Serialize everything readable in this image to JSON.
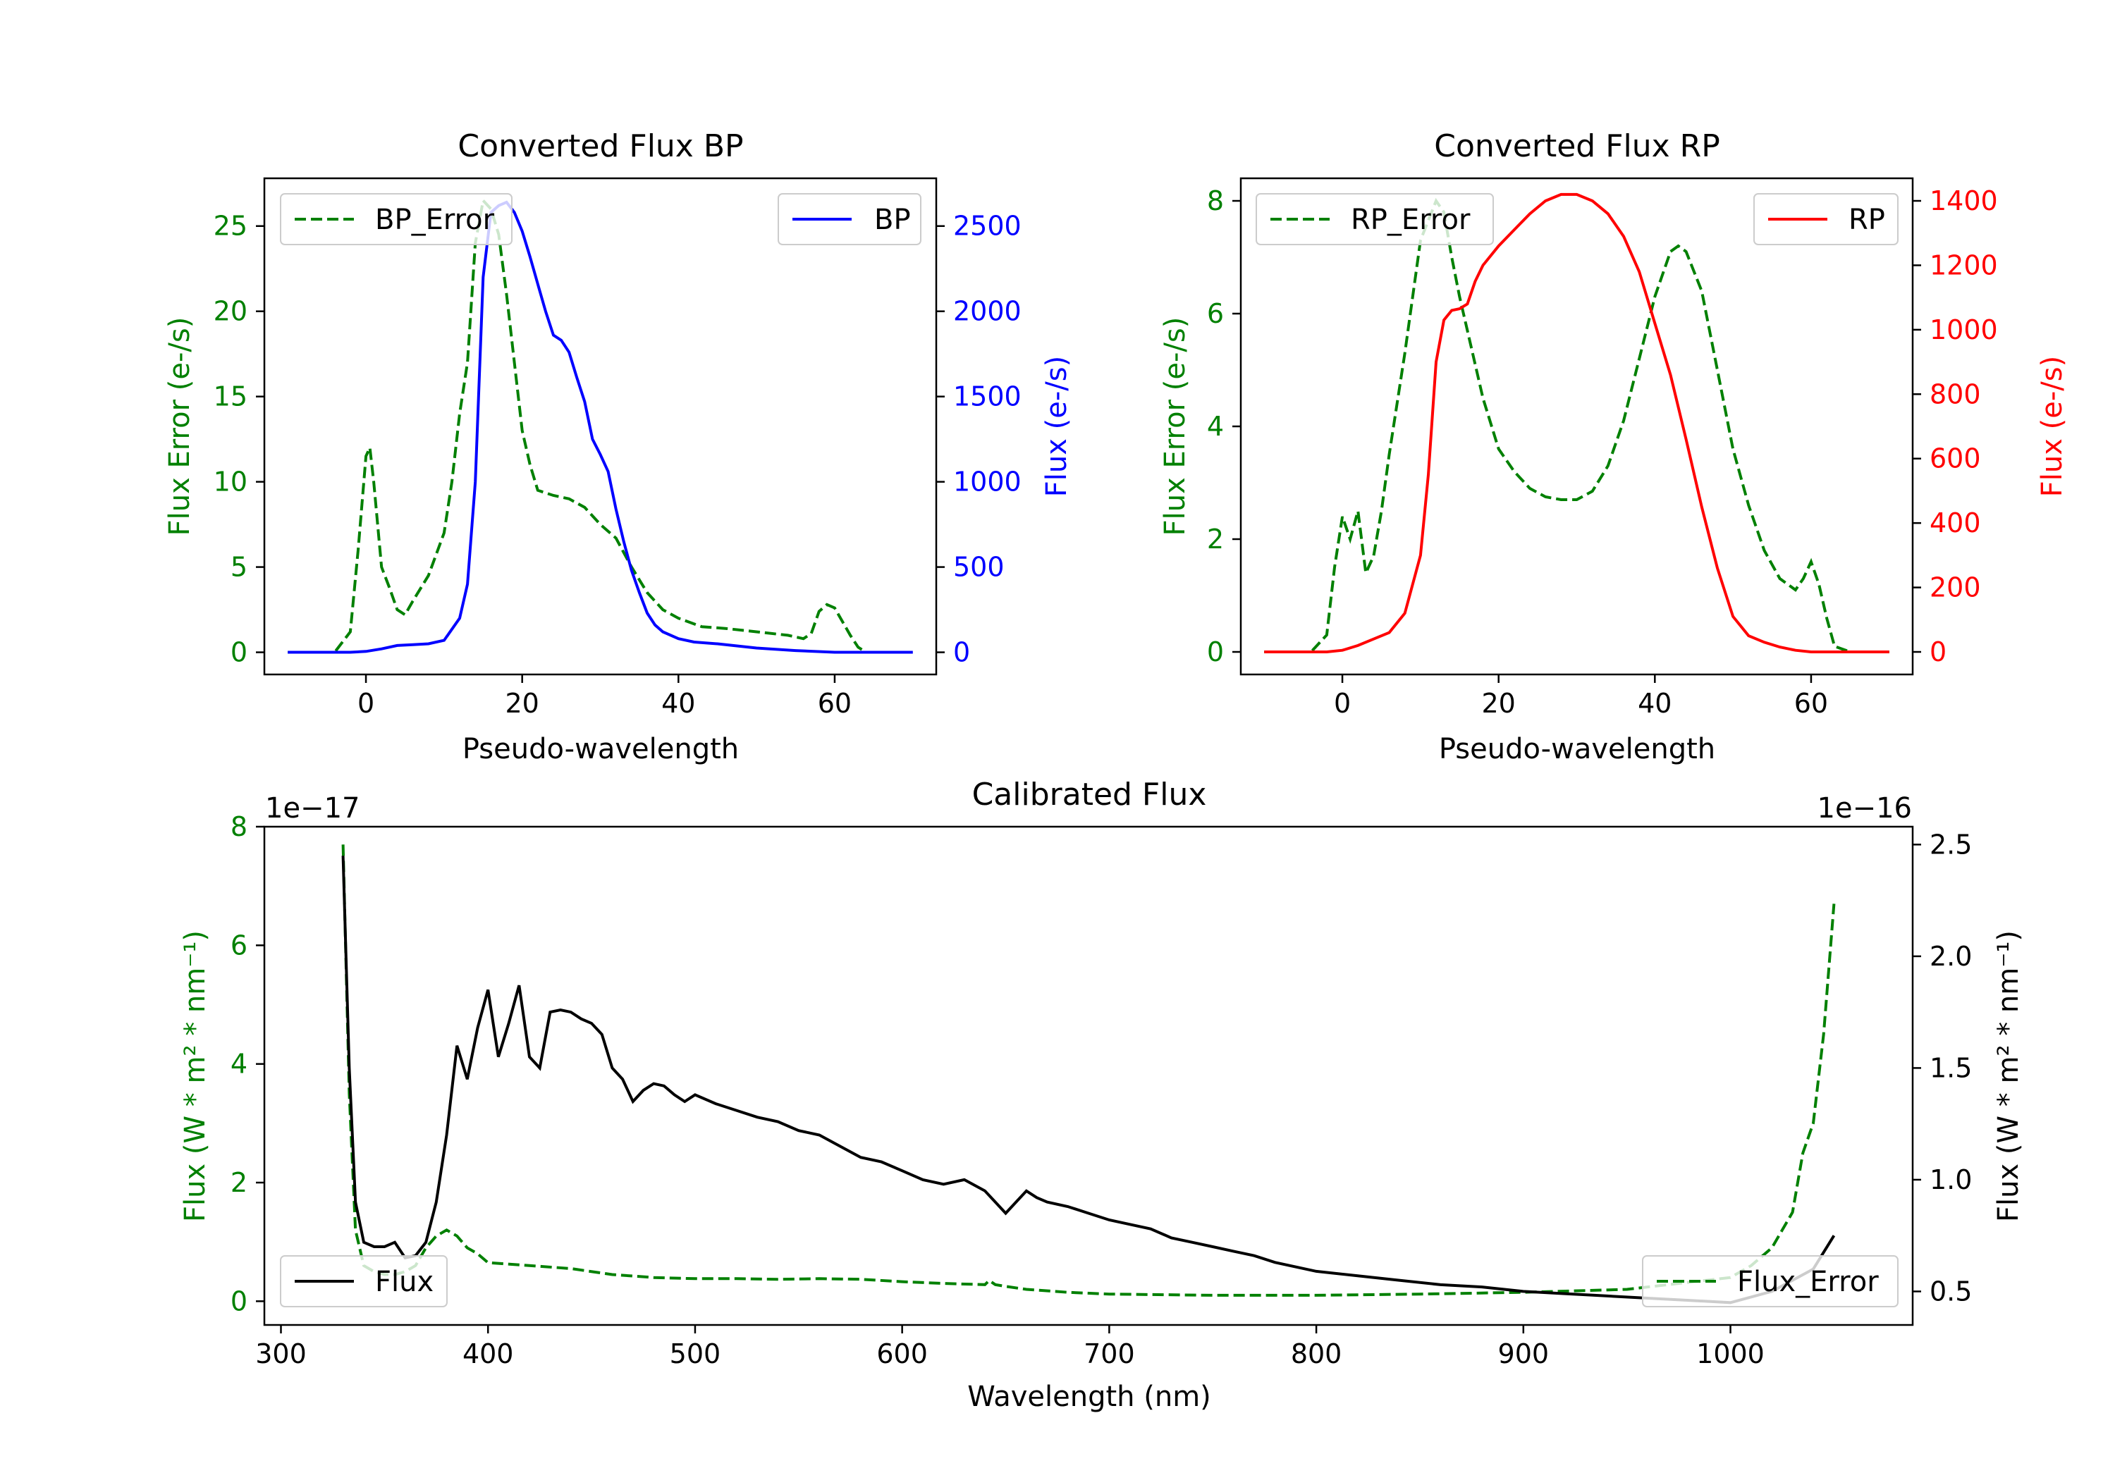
{
  "chart_data": [
    {
      "type": "line",
      "title": "Converted Flux BP",
      "xlabel": "Pseudo-wavelength",
      "ylabel_left": "Flux Error (e-/s)",
      "ylabel_right": "Flux (e-/s)",
      "xlim": [
        -13,
        73
      ],
      "ylim_left": [
        -1.3,
        27.8
      ],
      "ylim_right": [
        -130,
        2780
      ],
      "xticks": [
        0,
        20,
        40,
        60
      ],
      "yticks_left": [
        0,
        5,
        10,
        15,
        20,
        25
      ],
      "yticks_right": [
        0,
        500,
        1000,
        1500,
        2000,
        2500
      ],
      "legend_left": "BP_Error",
      "legend_right": "BP",
      "colors": {
        "error": "#008000",
        "flux": "#0000ff"
      },
      "series": [
        {
          "name": "BP_Error",
          "axis": "left",
          "style": "dashed",
          "x": [
            -10,
            -4,
            -2,
            -1,
            0,
            0.5,
            1,
            2,
            3,
            4,
            5,
            6,
            8,
            10,
            11,
            12,
            13,
            14,
            15,
            16,
            17,
            18,
            19,
            20,
            21,
            22,
            24,
            26,
            28,
            30,
            32,
            34,
            36,
            38,
            40,
            43,
            46,
            50,
            54,
            56,
            57,
            58,
            59,
            60,
            61,
            62,
            63,
            64,
            70
          ],
          "y": [
            0,
            0,
            1.2,
            6,
            11.5,
            12,
            10,
            5,
            3.8,
            2.5,
            2.2,
            3,
            4.5,
            7,
            10,
            14,
            17,
            24,
            26.5,
            26,
            24.5,
            21,
            17,
            13,
            11,
            9.5,
            9.2,
            9,
            8.5,
            7.5,
            6.7,
            5,
            3.5,
            2.5,
            2,
            1.5,
            1.4,
            1.2,
            1,
            0.8,
            1.1,
            2.4,
            2.8,
            2.6,
            1.8,
            1,
            0.3,
            0,
            0
          ]
        },
        {
          "name": "BP",
          "axis": "right",
          "style": "solid",
          "x": [
            -10,
            -2,
            0,
            2,
            4,
            6,
            8,
            10,
            12,
            13,
            14,
            15,
            16,
            17,
            18,
            19,
            20,
            21,
            22,
            23,
            24,
            25,
            26,
            27,
            28,
            29,
            30,
            31,
            32,
            33,
            34,
            35,
            36,
            37,
            38,
            40,
            42,
            45,
            50,
            55,
            60,
            65,
            70
          ],
          "y": [
            0,
            0,
            5,
            20,
            40,
            45,
            50,
            70,
            200,
            400,
            1000,
            2200,
            2580,
            2620,
            2640,
            2580,
            2470,
            2320,
            2160,
            2000,
            1860,
            1830,
            1760,
            1610,
            1470,
            1250,
            1160,
            1060,
            840,
            650,
            480,
            350,
            230,
            160,
            120,
            80,
            60,
            50,
            25,
            10,
            0,
            0,
            0
          ]
        }
      ]
    },
    {
      "type": "line",
      "title": "Converted Flux RP",
      "xlabel": "Pseudo-wavelength",
      "ylabel_left": "Flux Error (e-/s)",
      "ylabel_right": "Flux (e-/s)",
      "xlim": [
        -13,
        73
      ],
      "ylim_left": [
        -0.4,
        8.4
      ],
      "ylim_right": [
        -70,
        1470
      ],
      "xticks": [
        0,
        20,
        40,
        60
      ],
      "yticks_left": [
        0,
        2,
        4,
        6,
        8
      ],
      "yticks_right": [
        0,
        200,
        400,
        600,
        800,
        1000,
        1200,
        1400
      ],
      "legend_left": "RP_Error",
      "legend_right": "RP",
      "colors": {
        "error": "#008000",
        "flux": "#ff0000"
      },
      "series": [
        {
          "name": "RP_Error",
          "axis": "left",
          "style": "dashed",
          "x": [
            -10,
            -4,
            -2,
            -1,
            0,
            1,
            2,
            3,
            4,
            5,
            6,
            8,
            10,
            12,
            13,
            14,
            15,
            16,
            18,
            20,
            22,
            24,
            26,
            28,
            30,
            32,
            34,
            36,
            38,
            40,
            42,
            43,
            44,
            46,
            48,
            50,
            52,
            54,
            56,
            58,
            59,
            60,
            61,
            62,
            63,
            65,
            70
          ],
          "y": [
            0,
            0,
            0.3,
            1.5,
            2.4,
            2,
            2.5,
            1.4,
            1.7,
            2.5,
            3.5,
            5.3,
            7.3,
            8,
            7.8,
            7,
            6.3,
            5.7,
            4.5,
            3.6,
            3.2,
            2.9,
            2.75,
            2.7,
            2.7,
            2.85,
            3.3,
            4.1,
            5.2,
            6.3,
            7.1,
            7.2,
            7.1,
            6.4,
            5,
            3.6,
            2.6,
            1.8,
            1.3,
            1.1,
            1.3,
            1.6,
            1.2,
            0.6,
            0.1,
            0,
            0
          ]
        },
        {
          "name": "RP",
          "axis": "right",
          "style": "solid",
          "x": [
            -10,
            -2,
            0,
            2,
            4,
            6,
            8,
            10,
            11,
            12,
            13,
            14,
            15,
            16,
            17,
            18,
            20,
            22,
            24,
            26,
            28,
            30,
            32,
            34,
            36,
            38,
            40,
            42,
            44,
            46,
            48,
            50,
            52,
            54,
            56,
            58,
            60,
            65,
            70
          ],
          "y": [
            0,
            0,
            5,
            20,
            40,
            60,
            120,
            300,
            550,
            900,
            1030,
            1060,
            1065,
            1080,
            1150,
            1200,
            1260,
            1310,
            1360,
            1400,
            1420,
            1420,
            1400,
            1360,
            1290,
            1180,
            1020,
            860,
            660,
            450,
            260,
            110,
            50,
            30,
            15,
            5,
            0,
            0,
            0
          ]
        }
      ]
    },
    {
      "type": "line",
      "title": "Calibrated Flux",
      "xlabel": "Wavelength (nm)",
      "ylabel_left": "Flux (W * m² * nm⁻¹)",
      "ylabel_right": "Flux (W * m² * nm⁻¹)",
      "left_offset_label": "1e−17",
      "right_offset_label": "1e−16",
      "xlim": [
        292,
        1088
      ],
      "ylim_left": [
        -0.4,
        8.0
      ],
      "ylim_right": [
        0.35,
        2.58
      ],
      "xticks": [
        300,
        400,
        500,
        600,
        700,
        800,
        900,
        1000
      ],
      "yticks_left": [
        0,
        2,
        4,
        6,
        8
      ],
      "yticks_right": [
        0.5,
        1.0,
        1.5,
        2.0,
        2.5
      ],
      "legend_left": "Flux",
      "legend_right": "Flux_Error",
      "colors": {
        "error": "#008000",
        "flux": "#000000"
      },
      "series": [
        {
          "name": "Flux",
          "axis": "right",
          "style": "solid",
          "x": [
            330,
            333,
            336,
            340,
            345,
            350,
            355,
            360,
            365,
            370,
            375,
            380,
            385,
            390,
            395,
            400,
            405,
            410,
            415,
            420,
            425,
            430,
            435,
            440,
            445,
            450,
            455,
            460,
            465,
            470,
            475,
            480,
            485,
            490,
            495,
            500,
            510,
            520,
            530,
            540,
            550,
            560,
            570,
            580,
            590,
            600,
            610,
            620,
            630,
            640,
            645,
            650,
            655,
            660,
            665,
            670,
            680,
            690,
            700,
            710,
            720,
            730,
            740,
            750,
            760,
            770,
            780,
            790,
            800,
            820,
            840,
            860,
            880,
            890,
            900,
            920,
            940,
            960,
            980,
            1000,
            1020,
            1030,
            1040,
            1050
          ],
          "y": [
            2.45,
            1.5,
            0.9,
            0.72,
            0.7,
            0.7,
            0.72,
            0.65,
            0.66,
            0.72,
            0.9,
            1.2,
            1.6,
            1.45,
            1.68,
            1.85,
            1.55,
            1.7,
            1.87,
            1.55,
            1.5,
            1.75,
            1.76,
            1.75,
            1.72,
            1.7,
            1.65,
            1.5,
            1.45,
            1.35,
            1.4,
            1.43,
            1.42,
            1.38,
            1.35,
            1.38,
            1.34,
            1.31,
            1.28,
            1.26,
            1.22,
            1.2,
            1.15,
            1.1,
            1.08,
            1.04,
            1.0,
            0.98,
            1.0,
            0.95,
            0.9,
            0.85,
            0.9,
            0.95,
            0.92,
            0.9,
            0.88,
            0.85,
            0.82,
            0.8,
            0.78,
            0.74,
            0.72,
            0.7,
            0.68,
            0.66,
            0.63,
            0.61,
            0.59,
            0.57,
            0.55,
            0.53,
            0.52,
            0.51,
            0.5,
            0.49,
            0.48,
            0.47,
            0.46,
            0.45,
            0.5,
            0.55,
            0.6,
            0.75
          ]
        },
        {
          "name": "Flux_Error",
          "axis": "left",
          "style": "dashed",
          "x": [
            330,
            333,
            336,
            340,
            345,
            350,
            355,
            360,
            365,
            370,
            375,
            380,
            385,
            390,
            395,
            400,
            420,
            440,
            460,
            480,
            500,
            520,
            540,
            560,
            580,
            600,
            620,
            640,
            642,
            645,
            650,
            660,
            680,
            700,
            750,
            800,
            850,
            900,
            950,
            1000,
            1010,
            1020,
            1025,
            1030,
            1035,
            1040,
            1045,
            1050
          ],
          "y": [
            7.7,
            3.5,
            1.2,
            0.6,
            0.5,
            0.45,
            0.45,
            0.5,
            0.6,
            0.9,
            1.1,
            1.2,
            1.1,
            0.9,
            0.8,
            0.65,
            0.6,
            0.55,
            0.45,
            0.4,
            0.38,
            0.38,
            0.37,
            0.38,
            0.37,
            0.33,
            0.3,
            0.28,
            0.35,
            0.28,
            0.25,
            0.2,
            0.15,
            0.12,
            0.1,
            0.1,
            0.12,
            0.15,
            0.2,
            0.4,
            0.6,
            0.9,
            1.2,
            1.5,
            2.5,
            3.0,
            4.5,
            6.7
          ]
        }
      ]
    }
  ]
}
